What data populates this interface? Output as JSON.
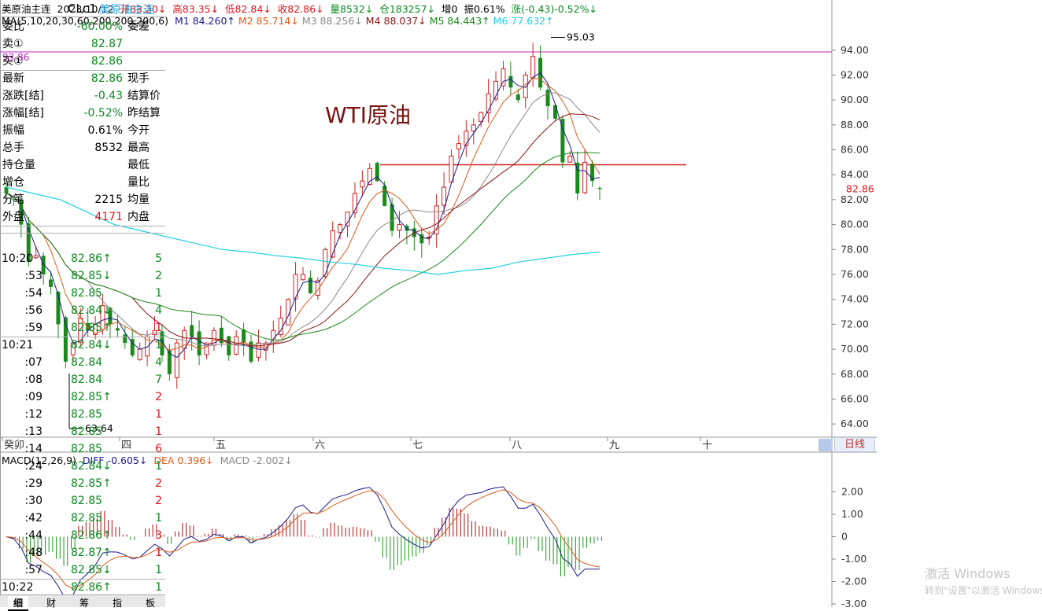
{
  "header": {
    "name": "美原油主连",
    "date": "2023/10/12",
    "open": "开83.20↓",
    "high": "高83.35↓",
    "low": "低82.84↓",
    "close": "收82.86↓",
    "volume": "量8532↓",
    "position": "仓183257↓",
    "increase": "增0",
    "amplitude": "振0.61%",
    "change": "涨(-0.43)-0.52%↓"
  },
  "ma_line": {
    "label": "MA(5,10,20,30,60,200,200,200,6)",
    "items": [
      {
        "text": "M1 84.260↑",
        "color": "#1a1a8c"
      },
      {
        "text": "M2 85.714↓",
        "color": "#e05a1a"
      },
      {
        "text": "M3 88.256↓",
        "color": "#8a8a8a"
      },
      {
        "text": "M4 88.037↓",
        "color": "#8a1414"
      },
      {
        "text": "M5 84.443↑",
        "color": "#1a8a1a"
      },
      {
        "text": "M6 77.632↑",
        "color": "#20d0e0"
      }
    ]
  },
  "annotations": {
    "chart_title": "WTI原油",
    "high_label": "95.03",
    "low_label": "63.64",
    "hline_label": "93.86",
    "last_price_tag": "82.86"
  },
  "months": [
    "癸卯",
    "四",
    "五",
    "六",
    "七",
    "八",
    "九",
    "十"
  ],
  "daily_button": "日线",
  "macd": {
    "label": "MACD(12,26,9)",
    "diff": "DIFF -0.605↓",
    "dea": "DEA 0.396↓",
    "macd": "MACD -2.002↓"
  },
  "chart_data": [
    {
      "type": "candlestick",
      "y_ticks": [
        "94.00",
        "92.00",
        "90.00",
        "88.00",
        "86.00",
        "84.00",
        "82.00",
        "80.00",
        "78.00",
        "76.00",
        "74.00",
        "72.00",
        "70.00",
        "68.00",
        "66.00",
        "64.00"
      ],
      "ylim": [
        63,
        95.5
      ],
      "high": 95.03,
      "low": 63.64,
      "horizontal_lines": [
        93.86,
        84.8
      ],
      "last": 82.86,
      "close_path": [
        82.5,
        82,
        80,
        77,
        77.5,
        76,
        75,
        72,
        69,
        70.5,
        72.5,
        71.5,
        72,
        73.5,
        72,
        71.5,
        70.5,
        69.5,
        70,
        71,
        71.5,
        69.5,
        68,
        70.5,
        71.5,
        71,
        69.5,
        70.5,
        71.5,
        70.5,
        69.5,
        71,
        70.5,
        69,
        70.5,
        70.5,
        71.5,
        72.5,
        74,
        76,
        76,
        74.5,
        75.5,
        78,
        79.5,
        80,
        81,
        82.5,
        83.5,
        84.5,
        83.5,
        81.5,
        79.5,
        80,
        79.5,
        79,
        78.5,
        79,
        81.5,
        83,
        85.5,
        86.5,
        87.5,
        88,
        89,
        90.5,
        91.5,
        92.5,
        91,
        90,
        92,
        93.5,
        91,
        89.5,
        88.5,
        85,
        85.5,
        82.5,
        85,
        83.5,
        82.86
      ],
      "ma_m6_path": [
        83,
        82.5,
        82,
        81,
        80,
        79.5,
        79,
        78.5,
        78,
        77.8,
        77.5,
        77.3,
        77,
        76.8,
        76.5,
        76.3,
        76,
        76.3,
        76.5,
        77,
        77.3,
        77.6,
        77.8
      ]
    },
    {
      "type": "bar",
      "name": "MACD",
      "y_ticks": [
        "2.00",
        "1.00",
        "0",
        "-1.00",
        "-2.00",
        "-3.00"
      ],
      "ylim": [
        -3,
        3
      ]
    }
  ],
  "right_panel": {
    "code": "CLc1",
    "name": "美原油主连",
    "rows": [
      {
        "label": "委比",
        "value": "-60.00%",
        "label2": "委差",
        "color": "#0a8a1f"
      },
      {
        "label": "卖①",
        "value": "82.87",
        "label2": "",
        "color": "#0a8a1f"
      },
      {
        "label": "买①",
        "value": "82.86",
        "label2": "",
        "color": "#0a8a1f"
      },
      {
        "label": "最新",
        "value": "82.86",
        "label2": "现手",
        "color": "#0a8a1f"
      },
      {
        "label": "涨跌[结]",
        "value": "-0.43",
        "label2": "结算价",
        "color": "#0a8a1f"
      },
      {
        "label": "涨幅[结]",
        "value": "-0.52%",
        "label2": "昨结算",
        "color": "#0a8a1f"
      },
      {
        "label": "振幅",
        "value": "0.61%",
        "label2": "今开",
        "color": "#000000"
      },
      {
        "label": "总手",
        "value": "8532",
        "label2": "最高",
        "color": "#000000"
      },
      {
        "label": "持仓量",
        "value": "",
        "label2": "最低",
        "color": "#000000"
      },
      {
        "label": "增仓",
        "value": "",
        "label2": "量比",
        "color": "#000000"
      },
      {
        "label": "分笔",
        "value": "2215",
        "label2": "均量",
        "color": "#000000"
      },
      {
        "label": "外盘",
        "value": "4171",
        "label2": "内盘",
        "color": "#e0141c"
      }
    ],
    "ticks": [
      {
        "time": "10:20",
        "price": "82.86↑",
        "vol": "5",
        "vcolor": "#0a8a1f",
        "hdr": true
      },
      {
        "time": ":53",
        "price": "82.85↓",
        "vol": "2",
        "vcolor": "#0a8a1f"
      },
      {
        "time": ":54",
        "price": "82.85",
        "vol": "1",
        "vcolor": "#0a8a1f"
      },
      {
        "time": ":56",
        "price": "82.84↓",
        "vol": "4",
        "vcolor": "#0a8a1f"
      },
      {
        "time": ":59",
        "price": "82.85↑",
        "vol": "1",
        "vcolor": "#e0141c"
      },
      {
        "time": "10:21",
        "price": "82.84↓",
        "vol": "1",
        "vcolor": "#0a8a1f",
        "hdr": true
      },
      {
        "time": ":07",
        "price": "82.84",
        "vol": "4",
        "vcolor": "#0a8a1f"
      },
      {
        "time": ":08",
        "price": "82.84",
        "vol": "7",
        "vcolor": "#0a8a1f"
      },
      {
        "time": ":09",
        "price": "82.85↑",
        "vol": "2",
        "vcolor": "#e0141c"
      },
      {
        "time": ":12",
        "price": "82.85",
        "vol": "1",
        "vcolor": "#e0141c"
      },
      {
        "time": ":13",
        "price": "82.85",
        "vol": "1",
        "vcolor": "#e0141c"
      },
      {
        "time": ":14",
        "price": "82.85",
        "vol": "6",
        "vcolor": "#e0141c"
      },
      {
        "time": ":24",
        "price": "82.84↓",
        "vol": "1",
        "vcolor": "#0a8a1f"
      },
      {
        "time": ":29",
        "price": "82.85↑",
        "vol": "2",
        "vcolor": "#e0141c"
      },
      {
        "time": ":30",
        "price": "82.85",
        "vol": "2",
        "vcolor": "#e0141c"
      },
      {
        "time": ":42",
        "price": "82.85",
        "vol": "1",
        "vcolor": "#0a8a1f"
      },
      {
        "time": ":44",
        "price": "82.86↑",
        "vol": "3",
        "vcolor": "#e0141c"
      },
      {
        "time": ":48",
        "price": "82.87↑",
        "vol": "1",
        "vcolor": "#e0141c"
      },
      {
        "time": ":57",
        "price": "82.85↓",
        "vol": "1",
        "vcolor": "#0a8a1f"
      },
      {
        "time": "10:22",
        "price": "82.86↑",
        "vol": "1",
        "vcolor": "#0a8a1f",
        "hdr": true
      }
    ],
    "tabs": [
      "细",
      "财",
      "筹",
      "指",
      "板"
    ]
  },
  "watermark": {
    "line1": "激活 Windows",
    "line2": "转到\"设置\"以激活 Windows。"
  }
}
